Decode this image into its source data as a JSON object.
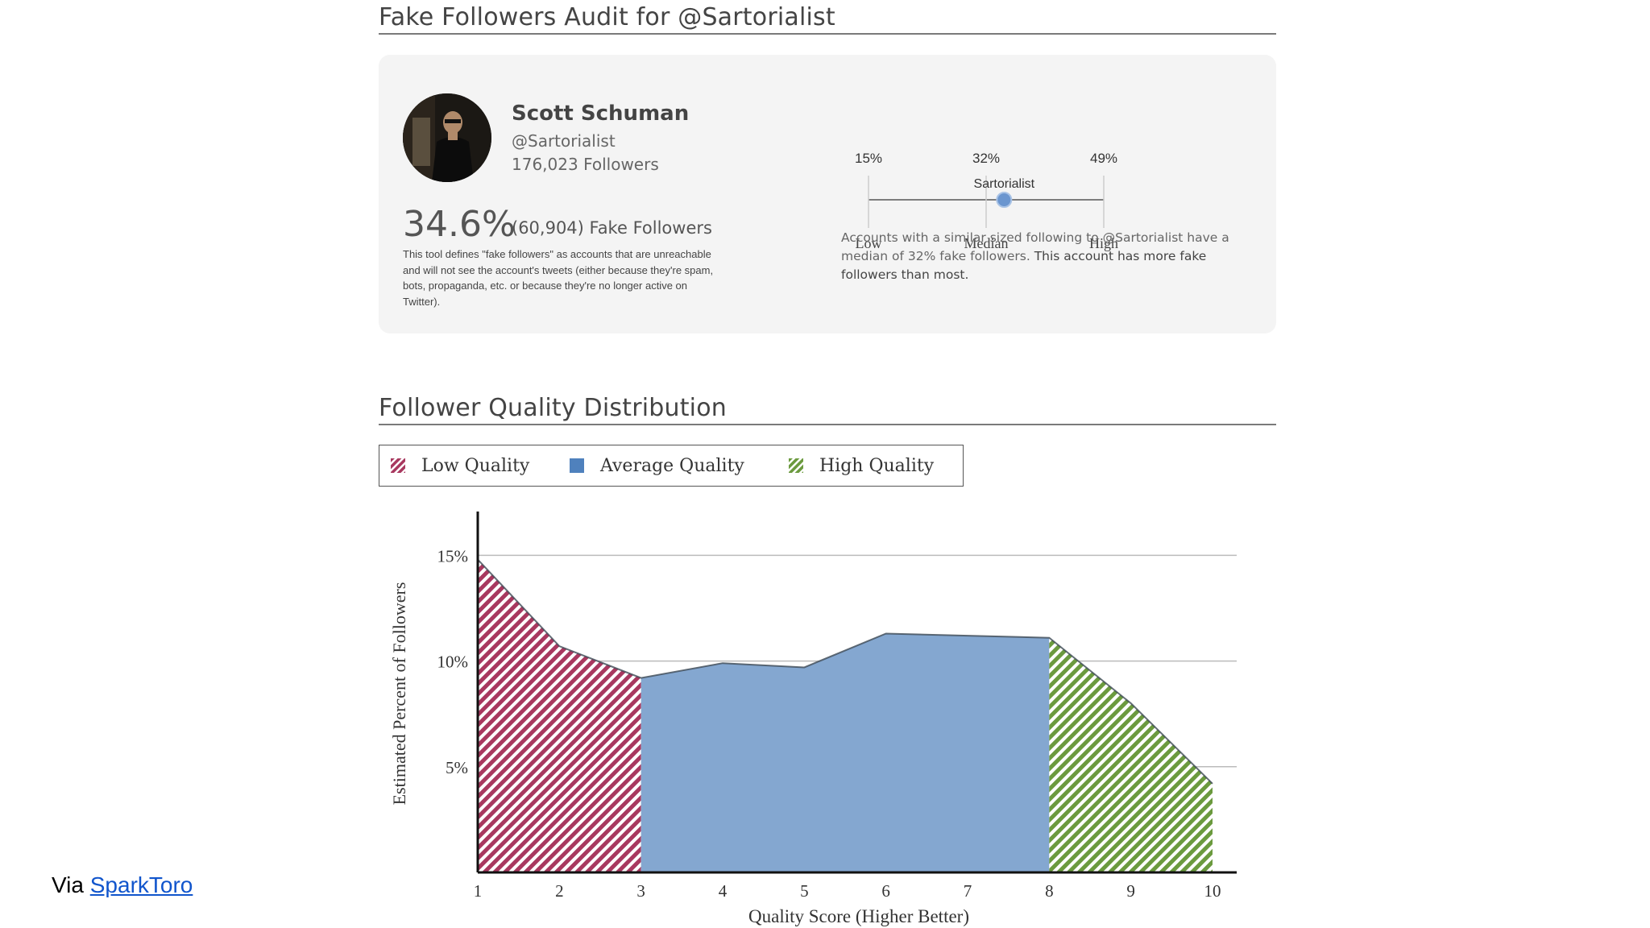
{
  "audit": {
    "title": "Fake Followers Audit for @Sartorialist",
    "name": "Scott Schuman",
    "handle": "@Sartorialist",
    "followers": "176,023 Followers",
    "fake_pct": "34.6%",
    "fake_count": "(60,904) Fake Followers",
    "definition": "This tool defines \"fake followers\" as accounts that are unreachable and will not see the account's tweets (either because they're spam, bots, propaganda, etc. or because they're no longer active on Twitter).",
    "scale": {
      "low_pct": "15%",
      "median_pct": "32%",
      "high_pct": "49%",
      "low_label": "Low",
      "median_label": "Median",
      "high_label": "High",
      "marker_label": "Sartorialist",
      "marker_value": 34.6,
      "min_value": 15,
      "median_value": 32,
      "max_value": 49
    },
    "median_note_a": "Accounts with a similar sized following to @Sartorialist have a median of 32% fake followers.",
    "median_note_b": "This account has more fake followers than most."
  },
  "distribution": {
    "title": "Follower Quality Distribution",
    "legend": [
      "Low Quality",
      "Average Quality",
      "High Quality"
    ]
  },
  "colors": {
    "low": "#a8385f",
    "average": "#84a7d0",
    "high": "#6b9a3e",
    "axis": "#111111",
    "grid": "#bbbbbb"
  },
  "chart_data": {
    "type": "area",
    "title": "Follower Quality Distribution",
    "xlabel": "Quality Score (Higher Better)",
    "ylabel": "Estimated Percent of Followers",
    "x": [
      1,
      2,
      3,
      4,
      5,
      6,
      7,
      8,
      9,
      10
    ],
    "values": [
      14.8,
      10.7,
      9.2,
      9.9,
      9.7,
      11.3,
      11.2,
      11.1,
      8.0,
      4.2
    ],
    "xticks": [
      "1",
      "2",
      "3",
      "4",
      "5",
      "6",
      "7",
      "8",
      "9",
      "10"
    ],
    "yticks": [
      {
        "value": 15,
        "label": "15%"
      },
      {
        "value": 10,
        "label": "10%"
      },
      {
        "value": 5,
        "label": "5%"
      }
    ],
    "ylim": [
      0,
      16.5
    ],
    "series": [
      {
        "name": "Low Quality",
        "x_range": [
          1,
          3
        ]
      },
      {
        "name": "Average Quality",
        "x_range": [
          3,
          8
        ]
      },
      {
        "name": "High Quality",
        "x_range": [
          8,
          10
        ]
      }
    ],
    "legend": "top-left",
    "grid": true
  },
  "footer": {
    "via": "Via",
    "link": "SparkToro"
  }
}
